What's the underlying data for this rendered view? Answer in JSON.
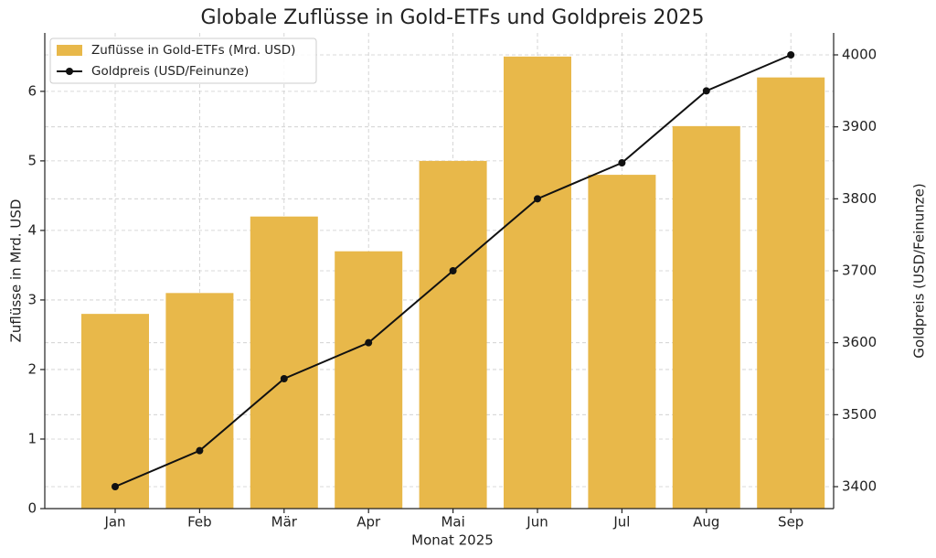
{
  "chart_data": {
    "type": "bar_line",
    "title": "Globale Zuflüsse in Gold-ETFs und Goldpreis 2025",
    "x_label": "Monat 2025",
    "y_label": "Zuflüsse in Mrd. USD",
    "y2_label": "Goldpreis (USD/Feinunze)",
    "categories": [
      "Jan",
      "Feb",
      "Mär",
      "Apr",
      "Mai",
      "Jun",
      "Jul",
      "Aug",
      "Sep"
    ],
    "series": [
      {
        "name": "Zuflüsse in Gold-ETFs (Mrd. USD)",
        "type": "bar",
        "color": "#e8b84a",
        "values": [
          2.8,
          3.1,
          4.2,
          3.7,
          5.0,
          6.5,
          4.8,
          5.5,
          6.2
        ]
      },
      {
        "name": "Goldpreis (USD/Feinunze)",
        "type": "line",
        "axis": "y2",
        "color": "#111111",
        "values": [
          3400,
          3450,
          3550,
          3600,
          3700,
          3800,
          3850,
          3950,
          4000
        ]
      }
    ],
    "ylim": [
      0,
      6.84
    ],
    "yticks": [
      0,
      1,
      2,
      3,
      4,
      5,
      6
    ],
    "y2lim": [
      3369.5,
      4030.5
    ],
    "y2ticks": [
      3400,
      3500,
      3600,
      3700,
      3800,
      3900,
      4000
    ],
    "grid": true,
    "legend": "upper-left"
  }
}
